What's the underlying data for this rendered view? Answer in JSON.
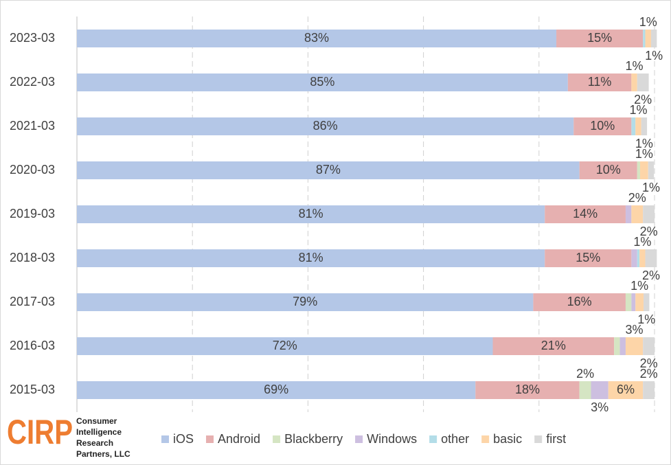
{
  "chart_data": {
    "type": "stacked-bar-horizontal",
    "categories": [
      "2023-03",
      "2022-03",
      "2021-03",
      "2020-03",
      "2019-03",
      "2018-03",
      "2017-03",
      "2016-03",
      "2015-03"
    ],
    "series": [
      {
        "name": "iOS",
        "color": "#b4c7e7",
        "values": [
          83,
          85,
          86,
          87,
          81,
          81,
          79,
          72,
          69
        ],
        "value_labels": [
          "83%",
          "85%",
          "86%",
          "87%",
          "81%",
          "81%",
          "79%",
          "72%",
          "69%"
        ]
      },
      {
        "name": "Android",
        "color": "#e6b0b0",
        "values": [
          15,
          11,
          10,
          10,
          14,
          15,
          16,
          21,
          18
        ],
        "value_labels": [
          "15%",
          "11%",
          "10%",
          "10%",
          "14%",
          "15%",
          "16%",
          "21%",
          "18%"
        ]
      },
      {
        "name": "Blackberry",
        "color": "#d5e5c3",
        "values": [
          0,
          0,
          0,
          0.5,
          0,
          0,
          1,
          1,
          2
        ],
        "value_labels": [
          null,
          null,
          null,
          null,
          null,
          null,
          null,
          null,
          "2%"
        ]
      },
      {
        "name": "Windows",
        "color": "#cdbfe0",
        "values": [
          0,
          0,
          0,
          0,
          1,
          1,
          0.7,
          1,
          3
        ],
        "value_labels": [
          null,
          null,
          null,
          null,
          null,
          null,
          null,
          null,
          "3%"
        ]
      },
      {
        "name": "other",
        "color": "#b3dde8",
        "values": [
          0.4,
          0,
          0.7,
          0,
          0,
          0.4,
          0,
          0,
          0
        ],
        "value_labels": [
          null,
          null,
          null,
          null,
          null,
          null,
          null,
          null,
          null
        ]
      },
      {
        "name": "basic",
        "color": "#fdd5a8",
        "values": [
          1,
          1,
          1,
          1.4,
          2,
          1,
          1.4,
          3,
          6
        ],
        "value_labels": [
          "1%",
          "1%",
          "1%",
          "1%",
          "2%",
          "1%",
          "1%",
          "3%",
          "6%"
        ]
      },
      {
        "name": "first",
        "color": "#d9d9d9",
        "values": [
          1,
          2,
          1,
          1,
          2,
          2,
          1,
          2,
          2
        ],
        "value_labels": [
          "1%",
          "2%",
          "1%",
          "1%",
          "2%",
          "2%",
          "1%",
          "2%",
          "2%"
        ]
      }
    ],
    "xlim": [
      0,
      100
    ],
    "xticks": [
      0,
      20,
      40,
      60,
      80,
      100
    ],
    "grid": true,
    "legend": "bottom"
  },
  "branding": {
    "mark": "CIRP",
    "lines": [
      "Consumer",
      "Intelligence",
      "Research",
      "Partners, LLC"
    ]
  }
}
